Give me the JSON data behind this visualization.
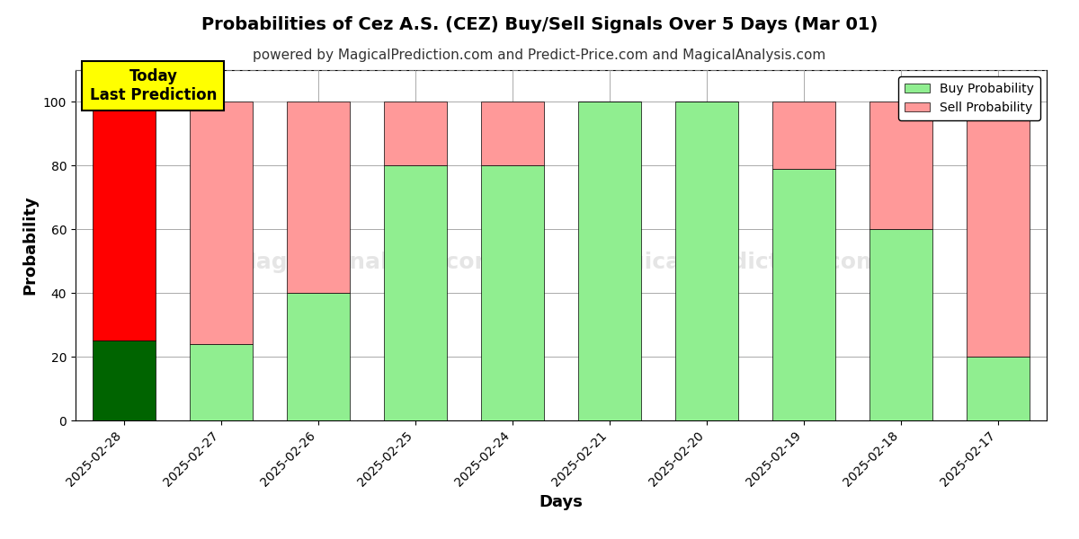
{
  "title": "Probabilities of Cez A.S. (CEZ) Buy/Sell Signals Over 5 Days (Mar 01)",
  "subtitle": "powered by MagicalPrediction.com and Predict-Price.com and MagicalAnalysis.com",
  "xlabel": "Days",
  "ylabel": "Probability",
  "categories": [
    "2025-02-28",
    "2025-02-27",
    "2025-02-26",
    "2025-02-25",
    "2025-02-24",
    "2025-02-21",
    "2025-02-20",
    "2025-02-19",
    "2025-02-18",
    "2025-02-17"
  ],
  "buy_values": [
    25,
    24,
    40,
    80,
    80,
    100,
    100,
    79,
    60,
    20
  ],
  "sell_values": [
    75,
    76,
    60,
    20,
    20,
    0,
    0,
    21,
    40,
    80
  ],
  "buy_color_default": "#90EE90",
  "sell_color_default": "#FF9999",
  "buy_color_today": "#006400",
  "sell_color_today": "#FF0000",
  "ylim_max": 110,
  "dashed_line_y": 110,
  "bg_color": "#ffffff",
  "grid_color": "#aaaaaa",
  "bar_edge_color": "#000000",
  "annotation_box_color": "#FFFF00",
  "annotation_text": "Today\nLast Prediction",
  "legend_buy_label": "Buy Probability",
  "legend_sell_label": "Sell Probability",
  "title_fontsize": 14,
  "subtitle_fontsize": 11,
  "axis_label_fontsize": 13,
  "tick_fontsize": 10,
  "yticks": [
    0,
    20,
    40,
    60,
    80,
    100
  ]
}
